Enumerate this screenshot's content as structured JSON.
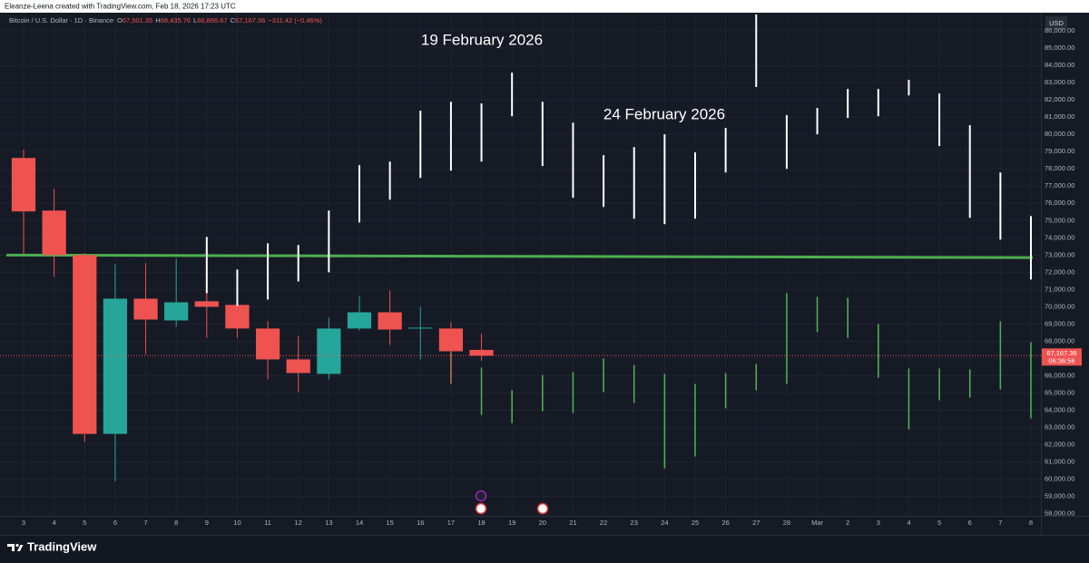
{
  "header": {
    "credit": "Eleanze-Leena created with TradingView.com, Feb 18, 2026 17:23 UTC"
  },
  "chart_data": {
    "type": "candlestick",
    "symbol": "Bitcoin / U.S. Dollar · 1D · Binance",
    "legend_values": [
      {
        "label": "O",
        "text": "67,501.35"
      },
      {
        "label": "H",
        "text": "68,435.76"
      },
      {
        "label": "L",
        "text": "66,866.67"
      },
      {
        "label": "C",
        "text": "67,167.36"
      }
    ],
    "change": "−311.42 (−0.46%)",
    "currency": "USD",
    "categories": [
      "3",
      "4",
      "5",
      "6",
      "7",
      "8",
      "9",
      "10",
      "11",
      "12",
      "13",
      "14",
      "15",
      "16",
      "17",
      "18",
      "19",
      "20",
      "21",
      "22",
      "23",
      "24",
      "25",
      "26",
      "27",
      "28",
      "Mar",
      "2",
      "3",
      "4",
      "5",
      "6",
      "7",
      "8"
    ],
    "open": [
      78630,
      75580,
      73000,
      62630,
      70470,
      69210,
      70320,
      70110,
      68740,
      66950,
      66110,
      68740,
      69680,
      68740,
      68740,
      67501.35,
      null,
      null,
      null,
      null,
      null,
      null,
      null,
      null,
      null,
      null,
      null,
      null,
      null,
      null,
      null,
      null,
      null,
      null
    ],
    "high": [
      79110,
      76840,
      73110,
      72470,
      72530,
      72790,
      74050,
      72160,
      69160,
      68320,
      69370,
      70630,
      70950,
      70000,
      69110,
      68435.76,
      null,
      null,
      null,
      null,
      null,
      null,
      null,
      null,
      null,
      null,
      null,
      null,
      null,
      null,
      null,
      null,
      null,
      null
    ],
    "low": [
      73050,
      71740,
      62160,
      59890,
      67260,
      68840,
      68210,
      68210,
      65790,
      65050,
      65790,
      68630,
      67790,
      66950,
      65530,
      66866.67,
      null,
      null,
      null,
      null,
      null,
      null,
      null,
      null,
      null,
      null,
      null,
      null,
      null,
      null,
      null,
      null,
      null,
      null
    ],
    "close": [
      75530,
      73000,
      62630,
      70470,
      69260,
      70260,
      70000,
      68740,
      66950,
      66160,
      68740,
      69680,
      68680,
      68790,
      67420,
      67167.36,
      null,
      null,
      null,
      null,
      null,
      null,
      null,
      null,
      null,
      null,
      null,
      null,
      null,
      null,
      null,
      null,
      null,
      null
    ],
    "up_color": "#26a69a",
    "down_color": "#ef5350",
    "upper_high": [
      null,
      null,
      null,
      null,
      null,
      null,
      74050,
      72160,
      73680,
      73580,
      75580,
      78210,
      78420,
      81370,
      81890,
      81790,
      83580,
      81890,
      80680,
      78790,
      79260,
      80000,
      78950,
      80370,
      86950,
      81110,
      81530,
      82630,
      82630,
      83160,
      82370,
      80530,
      77790,
      75260
    ],
    "upper_low": [
      null,
      null,
      null,
      null,
      null,
      null,
      70790,
      70050,
      70420,
      71470,
      72000,
      74890,
      76210,
      77470,
      77890,
      78420,
      81050,
      78160,
      76320,
      75790,
      75110,
      74790,
      75110,
      77790,
      82740,
      78000,
      80000,
      80950,
      81050,
      82260,
      79320,
      75160,
      73890,
      71580
    ],
    "upper_color": "#ffffff",
    "lower_high": [
      null,
      null,
      null,
      null,
      null,
      null,
      null,
      null,
      null,
      null,
      null,
      null,
      null,
      null,
      67370,
      66470,
      65160,
      66050,
      66210,
      67000,
      66630,
      66110,
      65530,
      66160,
      66680,
      70790,
      70580,
      70530,
      69000,
      66420,
      66420,
      66370,
      69160,
      67950
    ],
    "lower_low": [
      null,
      null,
      null,
      null,
      null,
      null,
      null,
      null,
      null,
      null,
      null,
      null,
      null,
      null,
      65530,
      63740,
      63260,
      63950,
      63840,
      65050,
      64420,
      60630,
      61320,
      64110,
      65160,
      65530,
      68530,
      68210,
      65890,
      62890,
      64580,
      64740,
      65210,
      63530
    ],
    "lower_color": "#4caf50",
    "level_line": {
      "values": [
        73000,
        72850
      ],
      "color": "#4caf50"
    },
    "last_price": {
      "value": 67167.36,
      "label": "67,167.36"
    },
    "countdown": "06:36:56",
    "annotations": [
      "19 February 2026",
      "24 February 2026"
    ],
    "ylim": [
      57300,
      87000
    ],
    "yticks": [
      {
        "value": 58000,
        "label": "58,000.00"
      },
      {
        "value": 59000,
        "label": "59,000.00"
      },
      {
        "value": 60000,
        "label": "60,000.00"
      },
      {
        "value": 61000,
        "label": "61,000.00"
      },
      {
        "value": 62000,
        "label": "62,000.00"
      },
      {
        "value": 63000,
        "label": "63,000.00"
      },
      {
        "value": 64000,
        "label": "64,000.00"
      },
      {
        "value": 65000,
        "label": "65,000.00"
      },
      {
        "value": 66000,
        "label": "66,000.00"
      },
      {
        "value": 67000,
        "label": "67,000.00"
      },
      {
        "value": 68000,
        "label": "68,000.00"
      },
      {
        "value": 69000,
        "label": "69,000.00"
      },
      {
        "value": 70000,
        "label": "70,000.00"
      },
      {
        "value": 71000,
        "label": "71,000.00"
      },
      {
        "value": 72000,
        "label": "72,000.00"
      },
      {
        "value": 73000,
        "label": "73,000.00"
      },
      {
        "value": 74000,
        "label": "74,000.00"
      },
      {
        "value": 75000,
        "label": "75,000.00"
      },
      {
        "value": 76000,
        "label": "76,000.00"
      },
      {
        "value": 77000,
        "label": "77,000.00"
      },
      {
        "value": 78000,
        "label": "78,000.00"
      },
      {
        "value": 79000,
        "label": "79,000.00"
      },
      {
        "value": 80000,
        "label": "80,000.00"
      },
      {
        "value": 81000,
        "label": "81,000.00"
      },
      {
        "value": 82000,
        "label": "82,000.00"
      },
      {
        "value": 83000,
        "label": "83,000.00"
      },
      {
        "value": 84000,
        "label": "84,000.00"
      },
      {
        "value": 85000,
        "label": "85,000.00"
      },
      {
        "value": 86000,
        "label": "86,000.00"
      }
    ],
    "grid": true
  },
  "footer": {
    "brand": "TradingView"
  }
}
